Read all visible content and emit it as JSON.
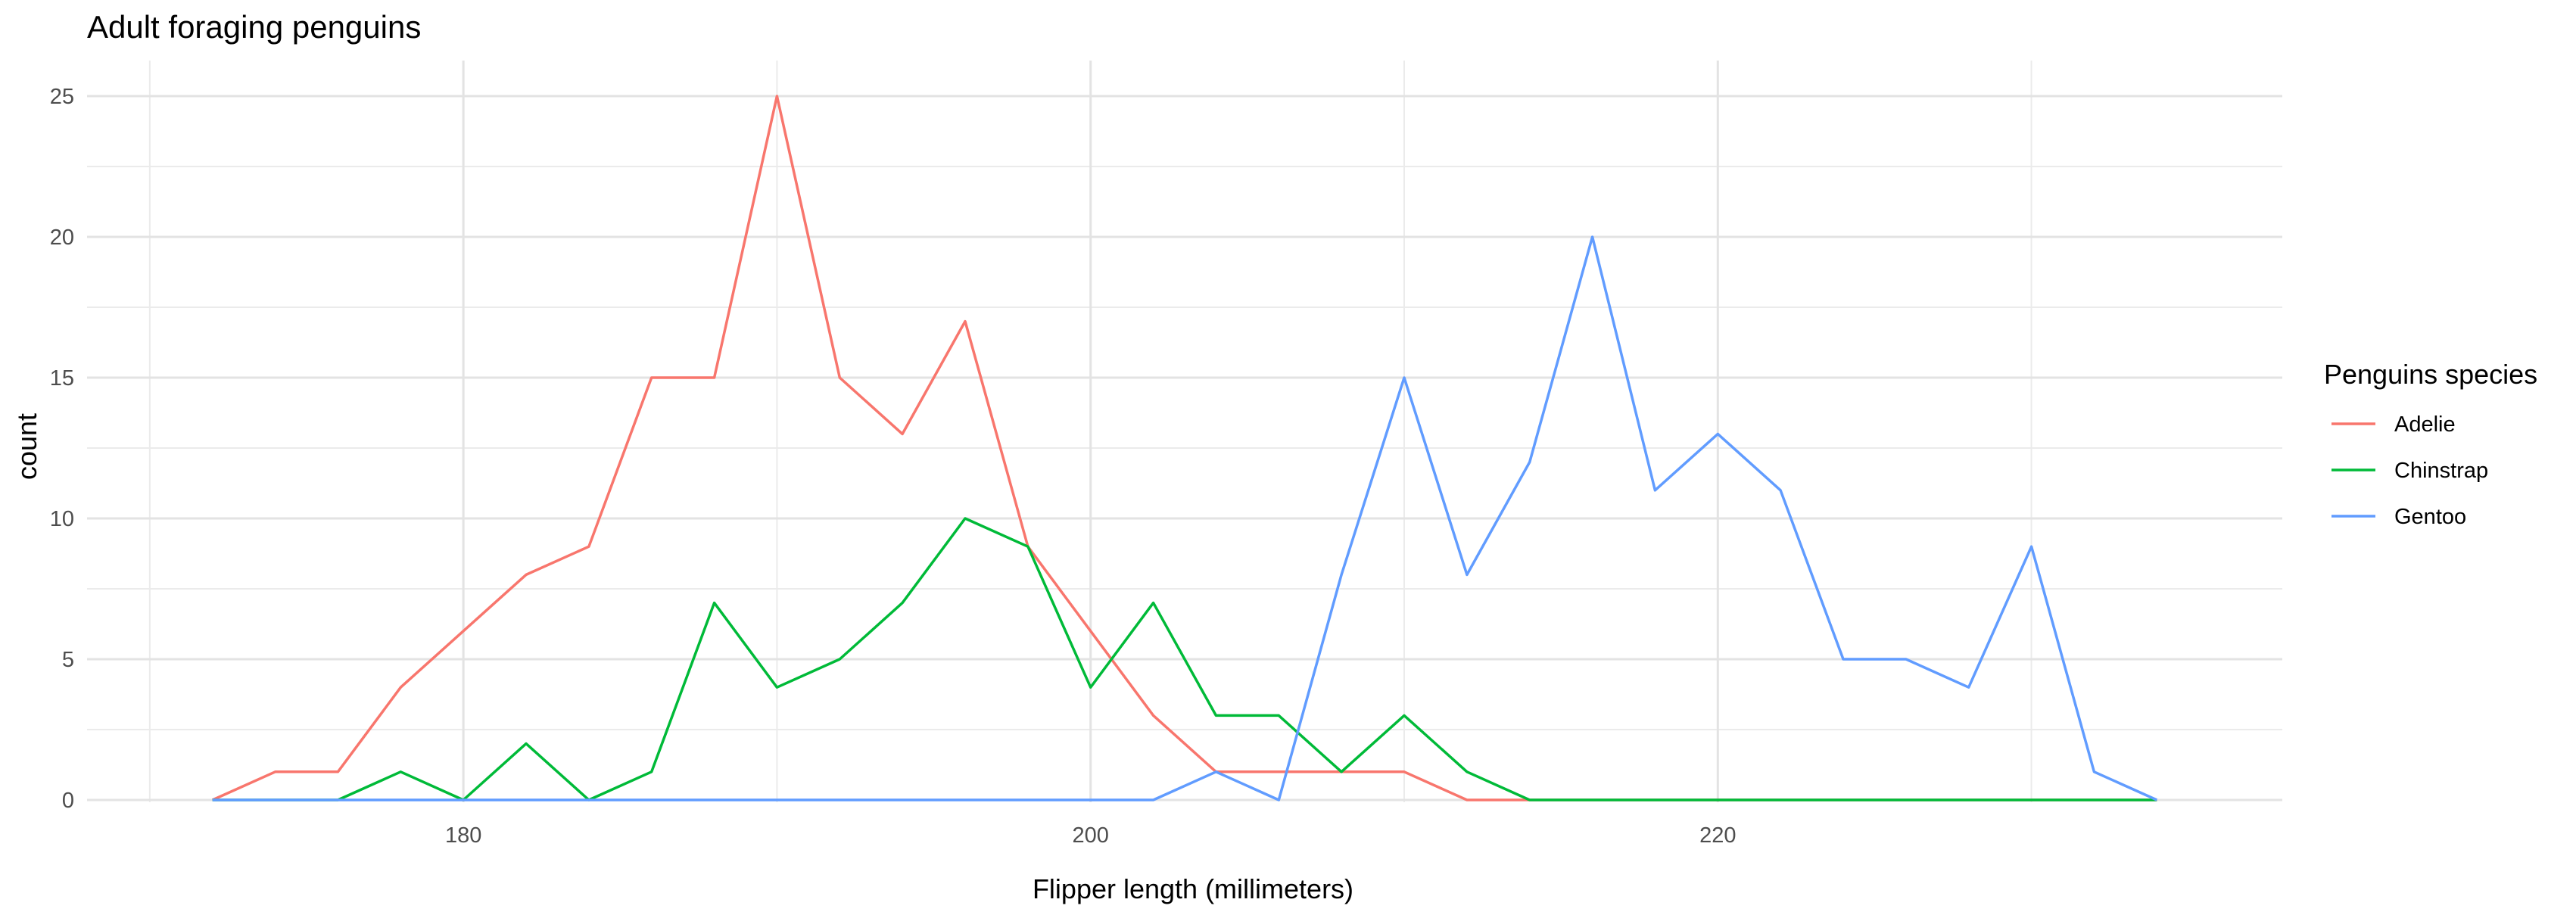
{
  "chart_data": {
    "type": "line",
    "title": "Adult foraging penguins",
    "xlabel": "Flipper length (millimeters)",
    "ylabel": "count",
    "legend_title": "Penguins species",
    "legend_position": "right",
    "grid": true,
    "xlim": [
      168,
      238
    ],
    "ylim": [
      0,
      25
    ],
    "x_ticks": [
      180,
      200,
      220
    ],
    "y_ticks": [
      0,
      5,
      10,
      15,
      20,
      25
    ],
    "x": [
      172,
      174,
      176,
      178,
      180,
      182,
      184,
      186,
      188,
      190,
      192,
      194,
      196,
      198,
      200,
      202,
      204,
      206,
      208,
      210,
      212,
      214,
      216,
      218,
      220,
      222,
      224,
      226,
      228,
      230,
      232,
      234
    ],
    "series": [
      {
        "name": "Adelie",
        "color": "#F8766D",
        "values": [
          0,
          1,
          1,
          4,
          6,
          8,
          9,
          15,
          15,
          25,
          15,
          13,
          17,
          9,
          6,
          3,
          1,
          1,
          1,
          1,
          0,
          0,
          0,
          0,
          0,
          0,
          0,
          0,
          0,
          0,
          0,
          0
        ]
      },
      {
        "name": "Chinstrap",
        "color": "#00BA38",
        "values": [
          0,
          0,
          0,
          1,
          0,
          2,
          0,
          1,
          7,
          4,
          5,
          7,
          10,
          9,
          4,
          7,
          3,
          3,
          1,
          3,
          1,
          0,
          0,
          0,
          0,
          0,
          0,
          0,
          0,
          0,
          0,
          0
        ]
      },
      {
        "name": "Gentoo",
        "color": "#619CFF",
        "values": [
          0,
          0,
          0,
          0,
          0,
          0,
          0,
          0,
          0,
          0,
          0,
          0,
          0,
          0,
          0,
          0,
          1,
          0,
          8,
          15,
          8,
          12,
          20,
          11,
          13,
          11,
          5,
          5,
          4,
          9,
          1,
          0
        ]
      }
    ]
  }
}
